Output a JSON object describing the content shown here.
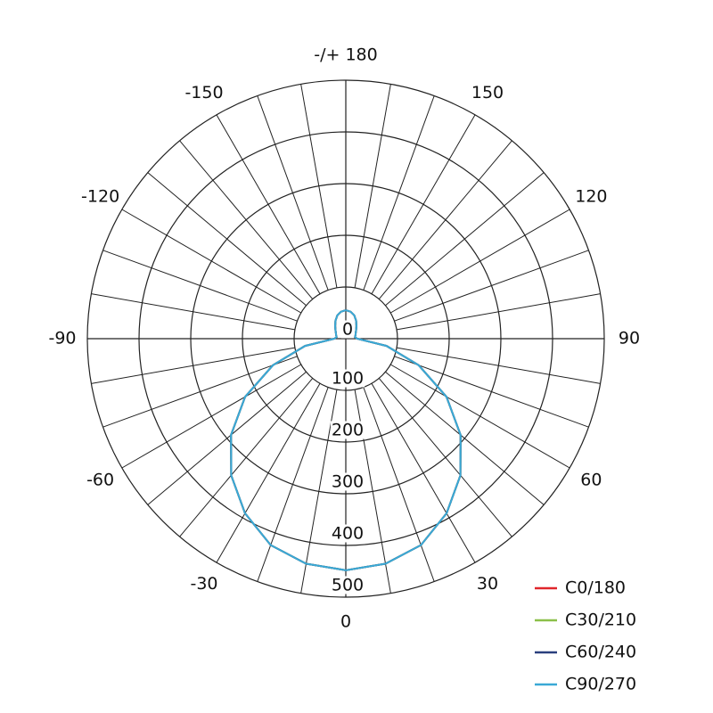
{
  "chart_data": {
    "type": "polar",
    "angles": [
      -180,
      -170,
      -160,
      -150,
      -140,
      -130,
      -120,
      -110,
      -100,
      -90,
      -80,
      -70,
      -60,
      -50,
      -40,
      -30,
      -20,
      -10,
      0,
      10,
      20,
      30,
      40,
      50,
      60,
      70,
      80,
      90,
      100,
      110,
      120,
      130,
      140,
      150,
      160,
      170,
      180
    ],
    "series": [
      {
        "name": "C0/180",
        "color": "#e0262b",
        "values": [
          55,
          53,
          48,
          40,
          32,
          26,
          22,
          20,
          18,
          22,
          80,
          150,
          225,
          290,
          345,
          390,
          425,
          442,
          448,
          442,
          425,
          390,
          345,
          290,
          225,
          150,
          80,
          22,
          18,
          20,
          22,
          26,
          32,
          40,
          48,
          53,
          55
        ]
      },
      {
        "name": "C30/210",
        "color": "#8cc04a",
        "values": [
          55,
          53,
          48,
          40,
          32,
          26,
          22,
          20,
          18,
          22,
          80,
          150,
          225,
          290,
          345,
          390,
          425,
          442,
          448,
          442,
          425,
          390,
          345,
          290,
          225,
          150,
          80,
          22,
          18,
          20,
          22,
          26,
          32,
          40,
          48,
          53,
          55
        ]
      },
      {
        "name": "C60/240",
        "color": "#2a3f7e",
        "values": [
          55,
          53,
          48,
          40,
          32,
          26,
          22,
          20,
          18,
          22,
          80,
          150,
          225,
          290,
          345,
          390,
          425,
          442,
          448,
          442,
          425,
          390,
          345,
          290,
          225,
          150,
          80,
          22,
          18,
          20,
          22,
          26,
          32,
          40,
          48,
          53,
          55
        ]
      },
      {
        "name": "C90/270",
        "color": "#3aa9d6",
        "values": [
          55,
          53,
          48,
          40,
          32,
          26,
          22,
          20,
          18,
          22,
          80,
          150,
          225,
          290,
          345,
          390,
          425,
          442,
          448,
          442,
          425,
          390,
          345,
          290,
          225,
          150,
          80,
          22,
          18,
          20,
          22,
          26,
          32,
          40,
          48,
          53,
          55
        ]
      }
    ],
    "rlim": [
      0,
      500
    ],
    "rticks": [
      0,
      100,
      200,
      300,
      400,
      500
    ],
    "angleticks": [
      {
        "value": 180,
        "label": "-/+ 180"
      },
      150,
      120,
      90,
      60,
      30,
      0,
      -30,
      -60,
      -90,
      -120,
      -150
    ],
    "grid": true,
    "legend": "lower right"
  }
}
